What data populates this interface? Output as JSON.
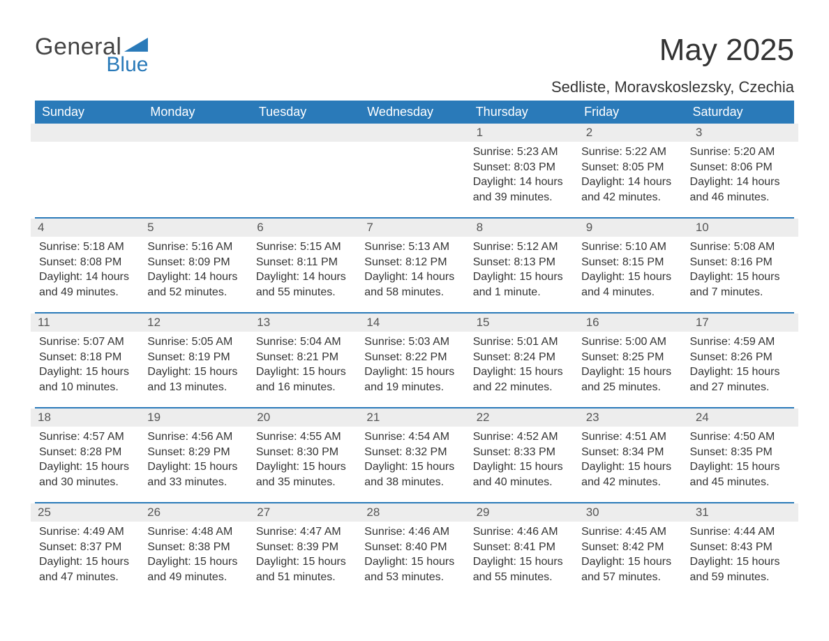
{
  "brand": {
    "name_part1": "General",
    "name_part2": "Blue",
    "text_color": "#444444",
    "accent_color": "#2a7ab9"
  },
  "header": {
    "title": "May 2025",
    "location": "Sedliste, Moravskoslezsky, Czechia"
  },
  "calendar": {
    "type": "table",
    "background_color": "#ffffff",
    "header_bg": "#2a7ab9",
    "header_text_color": "#ffffff",
    "row_divider_color": "#2a7ab9",
    "daynum_bg": "#ededed",
    "text_color": "#333333",
    "font_family": "Arial",
    "title_fontsize": 44,
    "location_fontsize": 22,
    "weekday_fontsize": 18,
    "cell_fontsize": 16,
    "columns": [
      "Sunday",
      "Monday",
      "Tuesday",
      "Wednesday",
      "Thursday",
      "Friday",
      "Saturday"
    ],
    "weeks": [
      [
        null,
        null,
        null,
        null,
        {
          "day": "1",
          "sunrise": "Sunrise: 5:23 AM",
          "sunset": "Sunset: 8:03 PM",
          "daylight": "Daylight: 14 hours and 39 minutes."
        },
        {
          "day": "2",
          "sunrise": "Sunrise: 5:22 AM",
          "sunset": "Sunset: 8:05 PM",
          "daylight": "Daylight: 14 hours and 42 minutes."
        },
        {
          "day": "3",
          "sunrise": "Sunrise: 5:20 AM",
          "sunset": "Sunset: 8:06 PM",
          "daylight": "Daylight: 14 hours and 46 minutes."
        }
      ],
      [
        {
          "day": "4",
          "sunrise": "Sunrise: 5:18 AM",
          "sunset": "Sunset: 8:08 PM",
          "daylight": "Daylight: 14 hours and 49 minutes."
        },
        {
          "day": "5",
          "sunrise": "Sunrise: 5:16 AM",
          "sunset": "Sunset: 8:09 PM",
          "daylight": "Daylight: 14 hours and 52 minutes."
        },
        {
          "day": "6",
          "sunrise": "Sunrise: 5:15 AM",
          "sunset": "Sunset: 8:11 PM",
          "daylight": "Daylight: 14 hours and 55 minutes."
        },
        {
          "day": "7",
          "sunrise": "Sunrise: 5:13 AM",
          "sunset": "Sunset: 8:12 PM",
          "daylight": "Daylight: 14 hours and 58 minutes."
        },
        {
          "day": "8",
          "sunrise": "Sunrise: 5:12 AM",
          "sunset": "Sunset: 8:13 PM",
          "daylight": "Daylight: 15 hours and 1 minute."
        },
        {
          "day": "9",
          "sunrise": "Sunrise: 5:10 AM",
          "sunset": "Sunset: 8:15 PM",
          "daylight": "Daylight: 15 hours and 4 minutes."
        },
        {
          "day": "10",
          "sunrise": "Sunrise: 5:08 AM",
          "sunset": "Sunset: 8:16 PM",
          "daylight": "Daylight: 15 hours and 7 minutes."
        }
      ],
      [
        {
          "day": "11",
          "sunrise": "Sunrise: 5:07 AM",
          "sunset": "Sunset: 8:18 PM",
          "daylight": "Daylight: 15 hours and 10 minutes."
        },
        {
          "day": "12",
          "sunrise": "Sunrise: 5:05 AM",
          "sunset": "Sunset: 8:19 PM",
          "daylight": "Daylight: 15 hours and 13 minutes."
        },
        {
          "day": "13",
          "sunrise": "Sunrise: 5:04 AM",
          "sunset": "Sunset: 8:21 PM",
          "daylight": "Daylight: 15 hours and 16 minutes."
        },
        {
          "day": "14",
          "sunrise": "Sunrise: 5:03 AM",
          "sunset": "Sunset: 8:22 PM",
          "daylight": "Daylight: 15 hours and 19 minutes."
        },
        {
          "day": "15",
          "sunrise": "Sunrise: 5:01 AM",
          "sunset": "Sunset: 8:24 PM",
          "daylight": "Daylight: 15 hours and 22 minutes."
        },
        {
          "day": "16",
          "sunrise": "Sunrise: 5:00 AM",
          "sunset": "Sunset: 8:25 PM",
          "daylight": "Daylight: 15 hours and 25 minutes."
        },
        {
          "day": "17",
          "sunrise": "Sunrise: 4:59 AM",
          "sunset": "Sunset: 8:26 PM",
          "daylight": "Daylight: 15 hours and 27 minutes."
        }
      ],
      [
        {
          "day": "18",
          "sunrise": "Sunrise: 4:57 AM",
          "sunset": "Sunset: 8:28 PM",
          "daylight": "Daylight: 15 hours and 30 minutes."
        },
        {
          "day": "19",
          "sunrise": "Sunrise: 4:56 AM",
          "sunset": "Sunset: 8:29 PM",
          "daylight": "Daylight: 15 hours and 33 minutes."
        },
        {
          "day": "20",
          "sunrise": "Sunrise: 4:55 AM",
          "sunset": "Sunset: 8:30 PM",
          "daylight": "Daylight: 15 hours and 35 minutes."
        },
        {
          "day": "21",
          "sunrise": "Sunrise: 4:54 AM",
          "sunset": "Sunset: 8:32 PM",
          "daylight": "Daylight: 15 hours and 38 minutes."
        },
        {
          "day": "22",
          "sunrise": "Sunrise: 4:52 AM",
          "sunset": "Sunset: 8:33 PM",
          "daylight": "Daylight: 15 hours and 40 minutes."
        },
        {
          "day": "23",
          "sunrise": "Sunrise: 4:51 AM",
          "sunset": "Sunset: 8:34 PM",
          "daylight": "Daylight: 15 hours and 42 minutes."
        },
        {
          "day": "24",
          "sunrise": "Sunrise: 4:50 AM",
          "sunset": "Sunset: 8:35 PM",
          "daylight": "Daylight: 15 hours and 45 minutes."
        }
      ],
      [
        {
          "day": "25",
          "sunrise": "Sunrise: 4:49 AM",
          "sunset": "Sunset: 8:37 PM",
          "daylight": "Daylight: 15 hours and 47 minutes."
        },
        {
          "day": "26",
          "sunrise": "Sunrise: 4:48 AM",
          "sunset": "Sunset: 8:38 PM",
          "daylight": "Daylight: 15 hours and 49 minutes."
        },
        {
          "day": "27",
          "sunrise": "Sunrise: 4:47 AM",
          "sunset": "Sunset: 8:39 PM",
          "daylight": "Daylight: 15 hours and 51 minutes."
        },
        {
          "day": "28",
          "sunrise": "Sunrise: 4:46 AM",
          "sunset": "Sunset: 8:40 PM",
          "daylight": "Daylight: 15 hours and 53 minutes."
        },
        {
          "day": "29",
          "sunrise": "Sunrise: 4:46 AM",
          "sunset": "Sunset: 8:41 PM",
          "daylight": "Daylight: 15 hours and 55 minutes."
        },
        {
          "day": "30",
          "sunrise": "Sunrise: 4:45 AM",
          "sunset": "Sunset: 8:42 PM",
          "daylight": "Daylight: 15 hours and 57 minutes."
        },
        {
          "day": "31",
          "sunrise": "Sunrise: 4:44 AM",
          "sunset": "Sunset: 8:43 PM",
          "daylight": "Daylight: 15 hours and 59 minutes."
        }
      ]
    ]
  }
}
